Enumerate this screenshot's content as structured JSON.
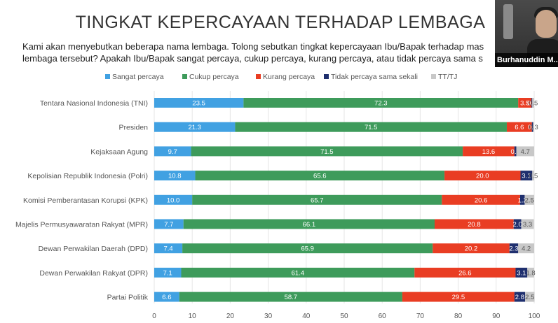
{
  "title": "TINGKAT KEPERCAYAAN TERHADAP LEMBAGA",
  "question": [
    "Kami akan menyebutkan beberapa nama lembaga. Tolong sebutkan tingkat kepercayaan Ibu/Bapak terhadap mas",
    "lembaga tersebut? Apakah Ibu/Bapak sangat percaya, cukup percaya, kurang percaya, atau tidak percaya sama s"
  ],
  "webcam": {
    "name": "Burhanuddin M..."
  },
  "colors": {
    "sangat": "#41a1e2",
    "cukup": "#3e9b5b",
    "kurang": "#e93d23",
    "tidak": "#1f2f6e",
    "tt": "#c8c8c8"
  },
  "chart_data": {
    "type": "bar",
    "orientation": "horizontal",
    "stacked": true,
    "categories": [
      "Tentara Nasional Indonesia (TNI)",
      "Presiden",
      "Kejaksaan Agung",
      "Kepolisian Republik Indonesia (Polri)",
      "Komisi Pemberantasan Korupsi (KPK)",
      "Majelis Permusyawaratan Rakyat (MPR)",
      "Dewan Perwakilan Daerah (DPD)",
      "Dewan Perwakilan Rakyat (DPR)",
      "Partai Politik"
    ],
    "series": [
      {
        "name": "Sangat percaya",
        "color": "#41a1e2",
        "label_color": "#ffffff",
        "values": [
          23.5,
          21.3,
          9.7,
          10.8,
          10.0,
          7.7,
          7.4,
          7.1,
          6.6
        ]
      },
      {
        "name": "Cukup percaya",
        "color": "#3e9b5b",
        "label_color": "#ffffff",
        "values": [
          72.3,
          71.5,
          71.5,
          65.6,
          65.7,
          66.1,
          65.9,
          61.4,
          58.7
        ]
      },
      {
        "name": "Kurang percaya",
        "color": "#e93d23",
        "label_color": "#ffffff",
        "values": [
          3.5,
          6.6,
          13.6,
          20.0,
          20.6,
          20.8,
          20.2,
          26.6,
          29.5
        ]
      },
      {
        "name": "Tidak percaya sama sekali",
        "color": "#1f2f6e",
        "label_color": "#ffffff",
        "values": [
          0.2,
          0.3,
          0.5,
          3.1,
          1.2,
          2.0,
          2.3,
          3.1,
          2.8
        ]
      },
      {
        "name": "TT/TJ",
        "color": "#c8c8c8",
        "label_color": "#555555",
        "values": [
          0.5,
          0.3,
          4.7,
          0.5,
          2.5,
          3.3,
          4.2,
          1.8,
          2.5
        ]
      }
    ],
    "value_labels": [
      [
        "23.5",
        "72.3",
        "3.5",
        "0.2",
        "0.5"
      ],
      [
        "21.3",
        "71.5",
        "6.6",
        "0.3",
        "0.3"
      ],
      [
        "9.7",
        "71.5",
        "13.6",
        "0.5",
        "4.7"
      ],
      [
        "10.8",
        "65.6",
        "20.0",
        "3.1",
        "0.5"
      ],
      [
        "10.0",
        "65.7",
        "20.6",
        "1.2",
        "2.5"
      ],
      [
        "7.7",
        "66.1",
        "20.8",
        "2.0",
        "3.3"
      ],
      [
        "7.4",
        "65.9",
        "20.2",
        "2.3",
        "4.2"
      ],
      [
        "7.1",
        "61.4",
        "26.6",
        "3.1",
        "1.8"
      ],
      [
        "6.6",
        "58.7",
        "29.5",
        "2.8",
        "2.5"
      ]
    ],
    "xlim": [
      0,
      100
    ],
    "xticks": [
      0,
      10,
      20,
      30,
      40,
      50,
      60,
      70,
      80,
      90,
      100
    ],
    "grid": true,
    "legend_position": "top"
  }
}
